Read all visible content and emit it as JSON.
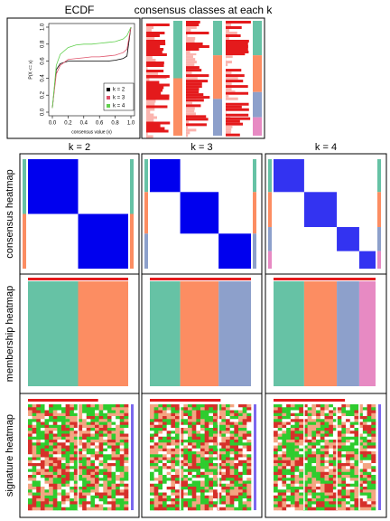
{
  "chart_data": {
    "type": "line",
    "title": "ECDF",
    "x_label": "consensus value (x)",
    "y_label": "P(X <= x)",
    "x": [
      0,
      0.05,
      0.1,
      0.2,
      0.3,
      0.4,
      0.5,
      0.6,
      0.7,
      0.8,
      0.9,
      0.95,
      1
    ],
    "series": [
      {
        "name": "k = 2",
        "color": "#000000",
        "values": [
          0.05,
          0.5,
          0.57,
          0.6,
          0.6,
          0.6,
          0.6,
          0.6,
          0.6,
          0.61,
          0.63,
          0.66,
          1
        ]
      },
      {
        "name": "k = 3",
        "color": "#DF536B",
        "values": [
          0.05,
          0.45,
          0.55,
          0.62,
          0.63,
          0.64,
          0.65,
          0.65,
          0.66,
          0.67,
          0.7,
          0.74,
          1
        ]
      },
      {
        "name": "k = 4",
        "color": "#61D04F",
        "values": [
          0.05,
          0.55,
          0.68,
          0.76,
          0.79,
          0.8,
          0.8,
          0.81,
          0.82,
          0.83,
          0.86,
          0.9,
          1
        ]
      }
    ],
    "xlim": [
      0,
      1
    ],
    "ylim": [
      0,
      1
    ],
    "xticks": [
      {
        "value": 0,
        "label": "0.0"
      },
      {
        "value": 0.2,
        "label": "0.2"
      },
      {
        "value": 0.4,
        "label": "0.4"
      },
      {
        "value": 0.6,
        "label": "0.6"
      },
      {
        "value": 0.8,
        "label": "0.8"
      },
      {
        "value": 1,
        "label": "1.0"
      }
    ],
    "yticks": [
      {
        "value": 0,
        "label": "0.0"
      },
      {
        "value": 0.2,
        "label": "0.2"
      },
      {
        "value": 0.4,
        "label": "0.4"
      },
      {
        "value": 0.6,
        "label": "0.6"
      },
      {
        "value": 0.8,
        "label": "0.8"
      },
      {
        "value": 1,
        "label": "1.0"
      }
    ],
    "legend": "bottom-right"
  },
  "panels": {
    "classes_title": "consensus classes at each k",
    "k_labels": [
      "k = 2",
      "k = 3",
      "k = 4"
    ],
    "row_labels": [
      "consensus heatmap",
      "membership heatmap",
      "signature heatmap"
    ]
  }
}
